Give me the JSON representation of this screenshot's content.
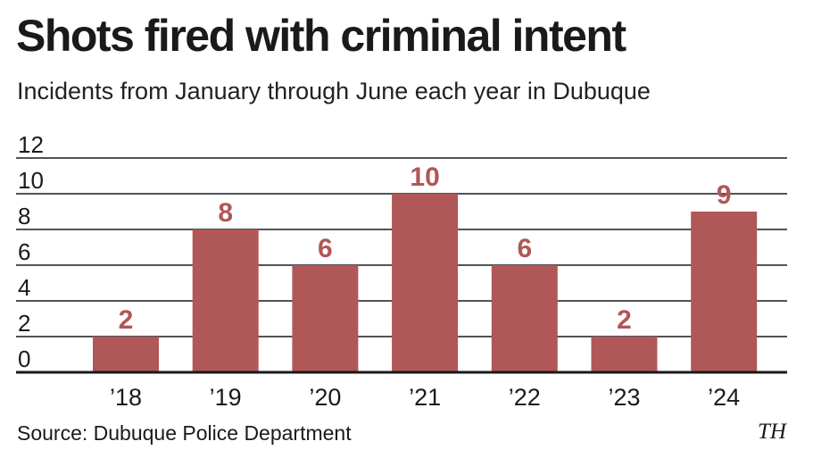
{
  "header": {
    "title": "Shots fired with criminal intent",
    "subtitle": "Incidents from January through June each year in Dubuque"
  },
  "footer": {
    "source": "Source: Dubuque Police Department",
    "credit": "TH"
  },
  "colors": {
    "bar": "#b05757",
    "label": "#b05757",
    "grid": "#1a1a1a"
  },
  "chart_data": {
    "type": "bar",
    "categories": [
      "’18",
      "’19",
      "’20",
      "’21",
      "’22",
      "’23",
      "’24"
    ],
    "values": [
      2,
      8,
      6,
      10,
      6,
      2,
      9
    ],
    "title": "Shots fired with criminal intent",
    "subtitle": "Incidents from January through June each year in Dubuque",
    "xlabel": "",
    "ylabel": "",
    "ylim": [
      0,
      12
    ],
    "yticks": [
      0,
      2,
      4,
      6,
      8,
      10,
      12
    ],
    "grid": true,
    "legend": "none",
    "data_labels": true
  }
}
